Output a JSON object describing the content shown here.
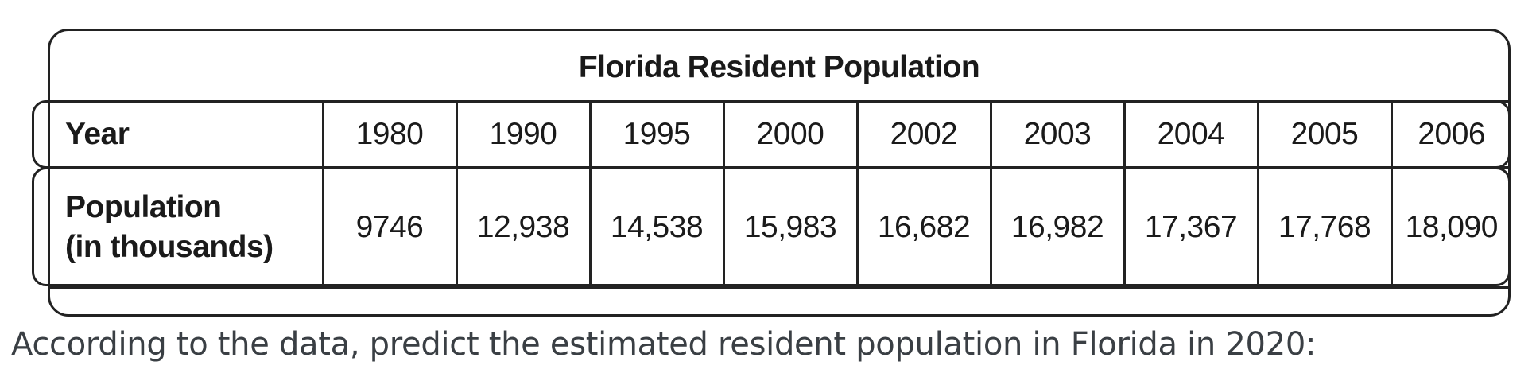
{
  "table": {
    "title": "Florida Resident Population",
    "year_label": "Year",
    "population_label_line1": "Population",
    "population_label_line2": "(in thousands)",
    "years": [
      "1980",
      "1990",
      "1995",
      "2000",
      "2002",
      "2003",
      "2004",
      "2005",
      "2006"
    ],
    "populations": [
      "9746",
      "12,938",
      "14,538",
      "15,983",
      "16,682",
      "16,982",
      "17,367",
      "17,768",
      "18,090"
    ]
  },
  "question": "According to the data, predict the estimated resident population in Florida in 2020:"
}
